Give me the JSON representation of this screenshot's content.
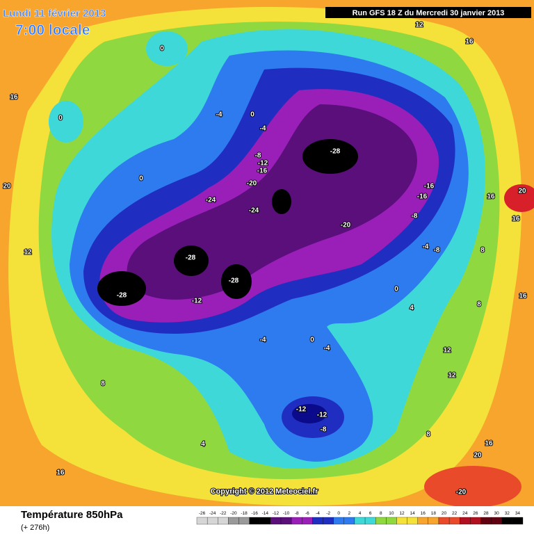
{
  "header": {
    "date": "Lundi 11 février 2013",
    "time": "7:00 locale",
    "run": "Run GFS 18 Z du Mercredi 30 janvier 2013"
  },
  "copyright": "Copyright © 2012 Meteociel.fr",
  "footer": {
    "title": "Température 850hPa",
    "lead": "(+ 276h)"
  },
  "scale": {
    "ticks": [
      -26,
      -24,
      -22,
      -20,
      -18,
      -16,
      -14,
      -12,
      -10,
      -8,
      -6,
      -4,
      -2,
      0,
      2,
      4,
      6,
      8,
      10,
      12,
      14,
      16,
      18,
      20,
      22,
      24,
      26,
      28,
      30,
      32,
      34
    ]
  },
  "map_labels": [
    "0",
    "12",
    "16",
    "16",
    "0",
    "0",
    "-4",
    "-4",
    "-8",
    "-12",
    "-16",
    "-28",
    "0",
    "-20",
    "20",
    "-16",
    "-16",
    "20",
    "16",
    "-24",
    "-24",
    "-8",
    "16",
    "-20",
    "12",
    "-4",
    "-8",
    "8",
    "-28",
    "-28",
    "0",
    "16",
    "-28",
    "-12",
    "4",
    "8",
    "-4",
    "0",
    "-4",
    "12",
    "8",
    "12",
    "-12",
    "-12",
    "-8",
    "8",
    "4",
    "16",
    "20",
    "16",
    "20",
    "-20"
  ]
}
